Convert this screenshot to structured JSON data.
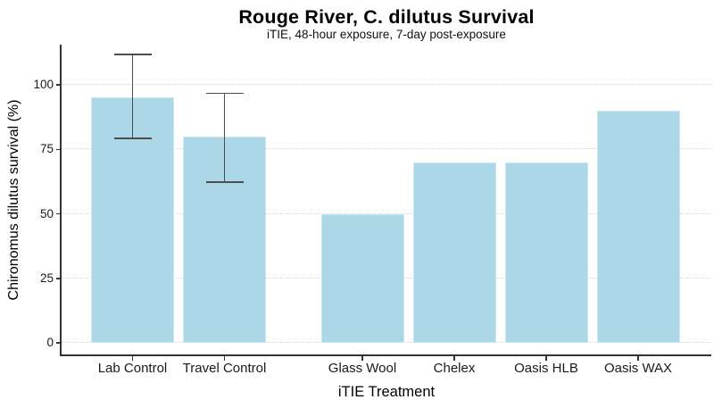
{
  "header": {
    "title": "Rouge River, C. dilutus Survival",
    "subtitle": "iTIE, 48-hour exposure, 7-day post-exposure"
  },
  "chart_data": {
    "type": "bar",
    "title": "Rouge River, C. dilutus Survival",
    "subtitle": "iTIE, 48-hour exposure, 7-day post-exposure",
    "xlabel": "iTIE Treatment",
    "ylabel": "Chironomus dilutus survival (%)",
    "categories": [
      "Lab Control",
      "Travel Control",
      "Glass Wool",
      "Chelex",
      "Oasis HLB",
      "Oasis WAX"
    ],
    "values": [
      95,
      80,
      50,
      70,
      70,
      90
    ],
    "error_bars": [
      {
        "category": "Lab Control",
        "index": 0,
        "ymin": 79,
        "ymax": 112
      },
      {
        "category": "Travel Control",
        "index": 1,
        "ymin": 62,
        "ymax": 97
      }
    ],
    "yticks": [
      0,
      25,
      50,
      75,
      100
    ],
    "ylim": [
      -5,
      116
    ],
    "grid": "horizontal-dotted",
    "legend": "none",
    "x_slots": [
      0,
      1,
      2.5,
      3.5,
      4.5,
      5.5
    ],
    "colors": {
      "bar_fill": "#ABD7E6",
      "bar_border": "#C9E8F3",
      "error_bar": "#4D4D4D",
      "axis_line": "#333333",
      "gridline": "#D5D5D5"
    }
  }
}
